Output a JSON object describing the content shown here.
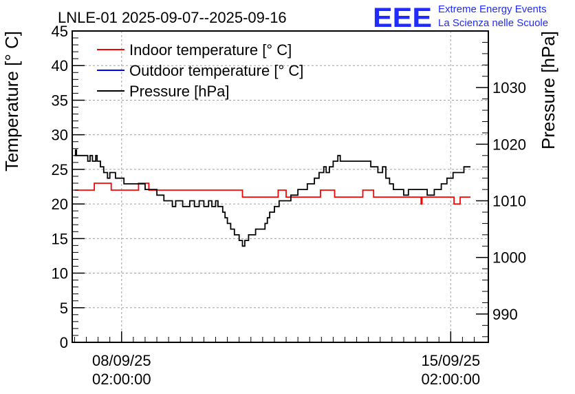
{
  "header": {
    "title": "LNLE-01 2025-09-07--2025-09-16",
    "logo_text": "EEE",
    "logo_line1": "Extreme Energy Events",
    "logo_line2": "La Scienza nelle Scuole"
  },
  "colors": {
    "indoor": "#ff0000",
    "outdoor": "#0000ff",
    "pressure": "#000000",
    "logo": "#1f2bff"
  },
  "chart_data": {
    "type": "line",
    "title": "LNLE-01 2025-09-07--2025-09-16",
    "ylabel": "Temperature [° C]",
    "y2label": "Pressure [hPa]",
    "ylim": [
      0,
      45
    ],
    "y2lim": [
      985,
      1040
    ],
    "yticks": [
      "0",
      "5",
      "10",
      "15",
      "20",
      "25",
      "30",
      "35",
      "40",
      "45"
    ],
    "y2ticks": [
      "990",
      "1000",
      "1010",
      "1020",
      "1030"
    ],
    "xticks": [
      {
        "t": 1,
        "line1": "08/09/25",
        "line2": "02:00:00"
      },
      {
        "t": 8,
        "line1": "15/09/25",
        "line2": "02:00:00"
      }
    ],
    "xlim": [
      -0.05,
      8.8
    ],
    "grid": true,
    "legend_position": "top-left",
    "series": [
      {
        "name": "Indoor temperature [° C]",
        "axis": "left",
        "color": "#ff0000",
        "points": [
          [
            0,
            22
          ],
          [
            0.4,
            22
          ],
          [
            0.42,
            23
          ],
          [
            0.75,
            23
          ],
          [
            0.78,
            22
          ],
          [
            1.33,
            22
          ],
          [
            1.36,
            23
          ],
          [
            1.55,
            23
          ],
          [
            1.58,
            22
          ],
          [
            3.55,
            22
          ],
          [
            3.57,
            21
          ],
          [
            4.3,
            21
          ],
          [
            4.33,
            22
          ],
          [
            4.48,
            22
          ],
          [
            4.5,
            21
          ],
          [
            5.2,
            21
          ],
          [
            5.23,
            22
          ],
          [
            5.5,
            22
          ],
          [
            5.53,
            21
          ],
          [
            6.1,
            21
          ],
          [
            6.13,
            22
          ],
          [
            6.33,
            22
          ],
          [
            6.36,
            21
          ],
          [
            7.35,
            21
          ],
          [
            7.37,
            20
          ],
          [
            7.39,
            21
          ],
          [
            8.05,
            21
          ],
          [
            8.07,
            20
          ],
          [
            8.18,
            20
          ],
          [
            8.2,
            21
          ],
          [
            8.42,
            21
          ]
        ]
      },
      {
        "name": "Outdoor temperature [° C]",
        "axis": "left",
        "color": "#0000ff",
        "points": [
          [
            0,
            0
          ],
          [
            8.42,
            0
          ]
        ]
      },
      {
        "name": "Pressure [hPa]",
        "axis": "right",
        "color": "#000000",
        "points": [
          [
            0,
            1018
          ],
          [
            0.02,
            1019
          ],
          [
            0.04,
            1018
          ],
          [
            0.25,
            1018
          ],
          [
            0.28,
            1017
          ],
          [
            0.33,
            1018
          ],
          [
            0.38,
            1017
          ],
          [
            0.45,
            1018
          ],
          [
            0.48,
            1017
          ],
          [
            0.55,
            1016
          ],
          [
            0.62,
            1015
          ],
          [
            0.7,
            1014
          ],
          [
            0.75,
            1015
          ],
          [
            0.87,
            1014
          ],
          [
            1.05,
            1013
          ],
          [
            1.5,
            1012
          ],
          [
            1.75,
            1011
          ],
          [
            1.9,
            1010
          ],
          [
            2.0,
            1010
          ],
          [
            2.08,
            1009
          ],
          [
            2.15,
            1010
          ],
          [
            2.3,
            1009
          ],
          [
            2.45,
            1010
          ],
          [
            2.55,
            1009
          ],
          [
            2.65,
            1010
          ],
          [
            2.75,
            1009
          ],
          [
            2.85,
            1010
          ],
          [
            2.92,
            1009
          ],
          [
            3.0,
            1010
          ],
          [
            3.05,
            1009
          ],
          [
            3.15,
            1008
          ],
          [
            3.2,
            1007
          ],
          [
            3.25,
            1006
          ],
          [
            3.32,
            1005
          ],
          [
            3.4,
            1004
          ],
          [
            3.5,
            1003
          ],
          [
            3.57,
            1002
          ],
          [
            3.62,
            1003
          ],
          [
            3.7,
            1004
          ],
          [
            3.85,
            1005
          ],
          [
            4.05,
            1006
          ],
          [
            4.1,
            1007
          ],
          [
            4.15,
            1008
          ],
          [
            4.25,
            1009
          ],
          [
            4.35,
            1010
          ],
          [
            4.6,
            1011
          ],
          [
            4.75,
            1012
          ],
          [
            4.95,
            1013
          ],
          [
            5.1,
            1014
          ],
          [
            5.2,
            1015
          ],
          [
            5.3,
            1016
          ],
          [
            5.35,
            1015
          ],
          [
            5.42,
            1016
          ],
          [
            5.5,
            1017
          ],
          [
            5.6,
            1018
          ],
          [
            5.65,
            1017
          ],
          [
            6.2,
            1017
          ],
          [
            6.3,
            1016
          ],
          [
            6.45,
            1015
          ],
          [
            6.55,
            1016
          ],
          [
            6.62,
            1014
          ],
          [
            6.7,
            1013
          ],
          [
            6.78,
            1012
          ],
          [
            6.9,
            1012
          ],
          [
            7.0,
            1011
          ],
          [
            7.1,
            1012
          ],
          [
            7.4,
            1012
          ],
          [
            7.5,
            1011
          ],
          [
            7.65,
            1012
          ],
          [
            7.8,
            1013
          ],
          [
            7.92,
            1014
          ],
          [
            8.05,
            1015
          ],
          [
            8.2,
            1015
          ],
          [
            8.28,
            1016
          ],
          [
            8.42,
            1016
          ]
        ]
      }
    ]
  }
}
